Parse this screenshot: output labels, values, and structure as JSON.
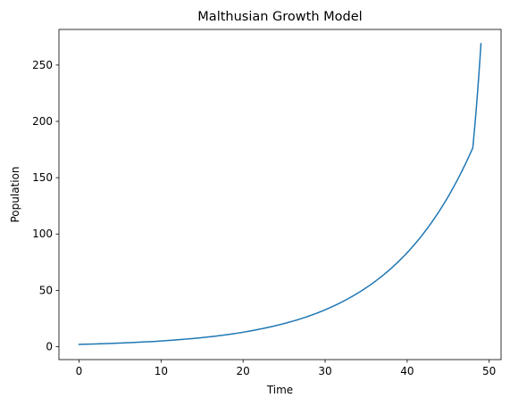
{
  "chart_data": {
    "type": "line",
    "title": "Malthusian Growth Model",
    "xlabel": "Time",
    "ylabel": "Population",
    "xlim": [
      -2.45,
      51.45
    ],
    "ylim": [
      -11.5,
      281.6
    ],
    "xticks": [
      0,
      10,
      20,
      30,
      40,
      50
    ],
    "yticks": [
      0,
      50,
      100,
      150,
      200,
      250
    ],
    "grid": false,
    "legend": "none",
    "series": [
      {
        "color": "#1f77b4",
        "x": [
          0,
          2,
          4,
          6,
          8,
          10,
          12,
          14,
          16,
          18,
          20,
          22,
          24,
          26,
          28,
          30,
          32,
          34,
          36,
          38,
          40,
          42,
          44,
          46,
          48,
          49
        ],
        "y": [
          2.0,
          2.4,
          2.9,
          3.5,
          4.2,
          5.0,
          6.1,
          7.3,
          8.8,
          10.6,
          12.8,
          15.5,
          18.7,
          22.5,
          27.1,
          32.7,
          39.5,
          47.6,
          57.4,
          69.2,
          83.4,
          100.6,
          121.3,
          146.3,
          176.4,
          269.0
        ]
      }
    ]
  }
}
